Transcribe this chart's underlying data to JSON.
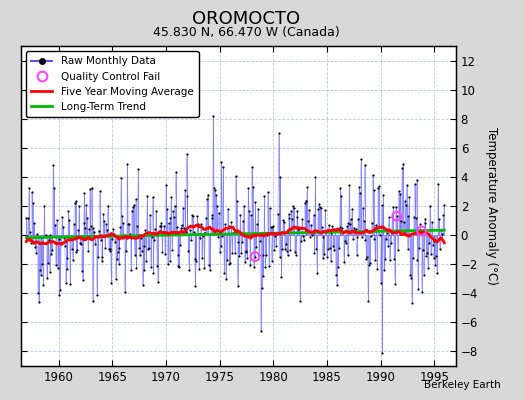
{
  "title": "OROMOCTO",
  "subtitle": "45.830 N, 66.470 W (Canada)",
  "ylabel": "Temperature Anomaly (°C)",
  "attribution": "Berkeley Earth",
  "xlim": [
    1956.5,
    1997.0
  ],
  "ylim": [
    -9,
    13
  ],
  "yticks": [
    -8,
    -6,
    -4,
    -2,
    0,
    2,
    4,
    6,
    8,
    10,
    12
  ],
  "xticks": [
    1960,
    1965,
    1970,
    1975,
    1980,
    1985,
    1990,
    1995
  ],
  "background_color": "#d8d8d8",
  "plot_bg_color": "#ffffff",
  "grid_color": "#c0c8d8",
  "raw_line_color": "#5555ff",
  "raw_dot_color": "#000000",
  "moving_avg_color": "#ff0000",
  "trend_color": "#00bb00",
  "qc_fail_color": "#ff44ff",
  "seed": 42,
  "n_months": 468,
  "start_year": 1957.0,
  "moving_avg_window": 60
}
